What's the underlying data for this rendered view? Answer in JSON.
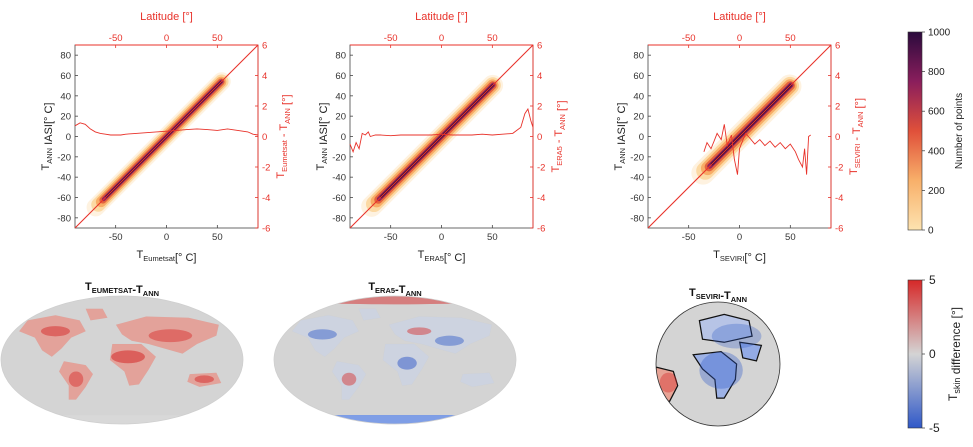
{
  "colors": {
    "red_axis": "#e8322a",
    "density_low": "#fde3b0",
    "density_high": "#2b0a3d",
    "diff_negative": "#2f58c8",
    "diff_zero": "#d4d4d4",
    "diff_positive": "#d62828",
    "land_outline": "#111111"
  },
  "scatter_panels": [
    {
      "top_xlabel": "Latitude [°]",
      "ylabel": "T_ANN IASI[° C]",
      "xlabel": "T_Eumetsat[° C]",
      "right_ylabel": "T_Eumetsat - T_ANN [°]",
      "map_title": "T_EUMETSAT-T_ANN",
      "map_projection": "robinson-global",
      "map_bias": "mostly warm (positive) differences"
    },
    {
      "top_xlabel": "Latitude [°]",
      "ylabel": "T_ANN IASI[° C]",
      "xlabel": "T_ERA5[° C]",
      "right_ylabel": "T_ERA5 - T_ANN [°]",
      "map_title": "T_ERA5-T_ANN",
      "map_projection": "robinson-global",
      "map_bias": "mixed positive and negative differences"
    },
    {
      "top_xlabel": "Latitude [°]",
      "ylabel": "T_ANN IASI[° C]",
      "xlabel": "T_SEVIRI[° C]",
      "right_ylabel": "T_SEVIRI - T_ANN [°]",
      "map_title": "T_SEVIRI-T_ANN",
      "map_projection": "orthographic-full-disk",
      "map_bias": "mostly cool (negative) differences"
    }
  ],
  "chart_data": [
    {
      "type": "heatmap",
      "panel": 1,
      "axes": {
        "x": {
          "label": "T_Eumetsat[° C]",
          "ticks": [
            -50,
            0,
            50
          ],
          "lim": [
            -90,
            90
          ]
        },
        "y": {
          "label": "T_ANN IASI[° C]",
          "ticks": [
            -80,
            -60,
            -40,
            -20,
            0,
            20,
            40,
            60,
            80
          ],
          "lim": [
            -90,
            90
          ]
        },
        "x_top": {
          "label": "Latitude [°]",
          "ticks": [
            -50,
            0,
            50
          ],
          "lim": [
            -90,
            90
          ]
        },
        "y_right": {
          "label": "T_Eumetsat - T_ANN [°]",
          "ticks": [
            -6,
            -4,
            -2,
            0,
            2,
            4,
            6
          ],
          "lim": [
            -6,
            6
          ]
        }
      },
      "density_extent": [
        -62,
        55
      ],
      "density_width": 7,
      "one_to_one_line": true,
      "zonal_mean_difference": {
        "latitude": [
          -90,
          -85,
          -80,
          -75,
          -70,
          -65,
          -60,
          -55,
          -50,
          -45,
          -40,
          -30,
          -20,
          -10,
          0,
          10,
          20,
          30,
          40,
          50,
          60,
          70,
          80,
          85,
          90
        ],
        "difference": [
          0.7,
          0.9,
          0.8,
          0.5,
          0.3,
          0.2,
          0.15,
          0.1,
          0.1,
          0.1,
          0.15,
          0.2,
          0.25,
          0.3,
          0.35,
          0.4,
          0.45,
          0.5,
          0.45,
          0.4,
          0.5,
          0.4,
          0.3,
          0.15,
          0.1
        ]
      }
    },
    {
      "type": "heatmap",
      "panel": 2,
      "axes": {
        "x": {
          "label": "T_ERA5[° C]",
          "ticks": [
            -50,
            0,
            50
          ],
          "lim": [
            -90,
            90
          ]
        },
        "y": {
          "label": "T_ANN IASI[° C]",
          "ticks": [
            -80,
            -60,
            -40,
            -20,
            0,
            20,
            40,
            60,
            80
          ],
          "lim": [
            -90,
            90
          ]
        },
        "x_top": {
          "label": "Latitude [°]",
          "ticks": [
            -50,
            0,
            50
          ],
          "lim": [
            -90,
            90
          ]
        },
        "y_right": {
          "label": "T_ERA5 - T_ANN [°]",
          "ticks": [
            -6,
            -4,
            -2,
            0,
            2,
            4,
            6
          ],
          "lim": [
            -6,
            6
          ]
        }
      },
      "density_extent": [
        -62,
        52
      ],
      "density_width": 8,
      "one_to_one_line": true,
      "zonal_mean_difference": {
        "latitude": [
          -90,
          -87,
          -84,
          -81,
          -78,
          -75,
          -72,
          -70,
          -65,
          -60,
          -50,
          -40,
          -30,
          -20,
          -10,
          0,
          10,
          20,
          30,
          40,
          50,
          60,
          70,
          78,
          82,
          85,
          88,
          90
        ],
        "difference": [
          -0.5,
          -1.0,
          -0.4,
          -0.8,
          0.2,
          0.1,
          0.3,
          0.0,
          0.1,
          0.1,
          0.05,
          0.1,
          0.1,
          0.1,
          0.1,
          0.15,
          0.1,
          0.1,
          0.1,
          0.15,
          0.1,
          0.15,
          0.2,
          0.6,
          1.5,
          1.8,
          1.0,
          0.6
        ]
      }
    },
    {
      "type": "heatmap",
      "panel": 3,
      "axes": {
        "x": {
          "label": "T_SEVIRI[° C]",
          "ticks": [
            -50,
            0,
            50
          ],
          "lim": [
            -90,
            90
          ]
        },
        "y": {
          "label": "T_ANN IASI[° C]",
          "ticks": [
            -80,
            -60,
            -40,
            -20,
            0,
            20,
            40,
            60,
            80
          ],
          "lim": [
            -90,
            90
          ]
        },
        "x_top": {
          "label": "Latitude [°]",
          "ticks": [
            -50,
            0,
            50
          ],
          "lim": [
            -90,
            90
          ]
        },
        "y_right": {
          "label": "T_SEVIRI - T_ANN [°]",
          "ticks": [
            -6,
            -4,
            -2,
            0,
            2,
            4,
            6
          ],
          "lim": [
            -6,
            6
          ]
        }
      },
      "density_extent": [
        -30,
        52
      ],
      "density_width": 9,
      "one_to_one_line": true,
      "zonal_mean_difference": {
        "latitude": [
          -35,
          -32,
          -28,
          -25,
          -22,
          -18,
          -15,
          -12,
          -8,
          -5,
          -2,
          0,
          3,
          6,
          10,
          15,
          20,
          25,
          30,
          35,
          40,
          45,
          50,
          55,
          58,
          62,
          64,
          66,
          68,
          70
        ],
        "difference": [
          -1.0,
          -0.4,
          -0.8,
          -0.3,
          0.2,
          -0.2,
          0.8,
          -0.6,
          0.1,
          -1.5,
          -2.5,
          -0.8,
          -0.3,
          0.2,
          -0.1,
          -0.5,
          -0.2,
          -0.6,
          -0.3,
          -0.7,
          -0.4,
          -0.8,
          -0.5,
          -1.0,
          -1.5,
          -2.0,
          -0.8,
          -2.5,
          0.0,
          0.1
        ]
      }
    }
  ],
  "colorbars": {
    "density": {
      "label": "Number of points",
      "ticks": [
        0,
        200,
        400,
        600,
        800,
        1000
      ],
      "lim": [
        0,
        1000
      ]
    },
    "difference": {
      "label": "T_skin difference [°]",
      "ticks": [
        -5,
        0,
        5
      ],
      "lim": [
        -5,
        5
      ]
    }
  }
}
